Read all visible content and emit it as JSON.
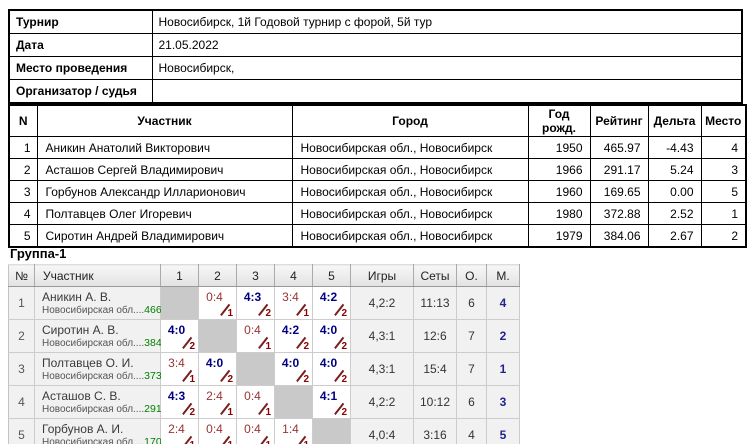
{
  "info": {
    "rows": [
      {
        "label": "Турнир",
        "value": "Новосибирск, 1й Годовой турнир с форой, 5й тур"
      },
      {
        "label": "Дата",
        "value": "21.05.2022"
      },
      {
        "label": "Место проведения",
        "value": "Новосибирск,"
      },
      {
        "label": "Организатор / судья",
        "value": ""
      }
    ]
  },
  "participants": {
    "headers": [
      "N",
      "Участник",
      "Город",
      "Год рожд.",
      "Рейтинг",
      "Дельта",
      "Место"
    ],
    "rows": [
      [
        "1",
        "Аникин Анатолий Викторович",
        "Новосибирская обл., Новосибирск",
        "1950",
        "465.97",
        "-4.43",
        "4"
      ],
      [
        "2",
        "Асташов Сергей Владимирович",
        "Новосибирская обл., Новосибирск",
        "1966",
        "291.17",
        "5.24",
        "3"
      ],
      [
        "3",
        "Горбунов Александр Илларионович",
        "Новосибирская обл., Новосибирск",
        "1960",
        "169.65",
        "0.00",
        "5"
      ],
      [
        "4",
        "Полтавцев Олег Игоревич",
        "Новосибирская обл., Новосибирск",
        "1980",
        "372.88",
        "2.52",
        "1"
      ],
      [
        "5",
        "Сиротин Андрей Владимирович",
        "Новосибирская обл., Новосибирск",
        "1979",
        "384.06",
        "2.67",
        "2"
      ]
    ]
  },
  "group": {
    "title": "Группа-1",
    "headers": [
      "№",
      "Участник",
      "1",
      "2",
      "3",
      "4",
      "5",
      "Игры",
      "Сеты",
      "О.",
      "М."
    ],
    "players": [
      {
        "num": "1",
        "name": "Аникин А. В.",
        "region": "Новосибирская обл....",
        "rating": "466",
        "results": [
          null,
          {
            "score": "0:4",
            "handicap": "1",
            "win": false
          },
          {
            "score": "4:3",
            "handicap": "2",
            "win": true
          },
          {
            "score": "3:4",
            "handicap": "1",
            "win": false
          },
          {
            "score": "4:2",
            "handicap": "2",
            "win": true
          }
        ],
        "games": "4,2:2",
        "sets": "11:13",
        "points": "6",
        "place": "4"
      },
      {
        "num": "2",
        "name": "Сиротин А. В.",
        "region": "Новосибирская обл....",
        "rating": "384",
        "results": [
          {
            "score": "4:0",
            "handicap": "2",
            "win": true
          },
          null,
          {
            "score": "0:4",
            "handicap": "1",
            "win": false
          },
          {
            "score": "4:2",
            "handicap": "2",
            "win": true
          },
          {
            "score": "4:0",
            "handicap": "2",
            "win": true
          }
        ],
        "games": "4,3:1",
        "sets": "12:6",
        "points": "7",
        "place": "2"
      },
      {
        "num": "3",
        "name": "Полтавцев О. И.",
        "region": "Новосибирская обл....",
        "rating": "373",
        "results": [
          {
            "score": "3:4",
            "handicap": "1",
            "win": false
          },
          {
            "score": "4:0",
            "handicap": "2",
            "win": true
          },
          null,
          {
            "score": "4:0",
            "handicap": "2",
            "win": true
          },
          {
            "score": "4:0",
            "handicap": "2",
            "win": true
          }
        ],
        "games": "4,3:1",
        "sets": "15:4",
        "points": "7",
        "place": "1"
      },
      {
        "num": "4",
        "name": "Асташов С. В.",
        "region": "Новосибирская обл....",
        "rating": "291",
        "results": [
          {
            "score": "4:3",
            "handicap": "2",
            "win": true
          },
          {
            "score": "2:4",
            "handicap": "1",
            "win": false
          },
          {
            "score": "0:4",
            "handicap": "1",
            "win": false
          },
          null,
          {
            "score": "4:1",
            "handicap": "2",
            "win": true
          }
        ],
        "games": "4,2:2",
        "sets": "10:12",
        "points": "6",
        "place": "3"
      },
      {
        "num": "5",
        "name": "Горбунов А. И.",
        "region": "Новосибирская обл....",
        "rating": "170",
        "results": [
          {
            "score": "2:4",
            "handicap": "1",
            "win": false
          },
          {
            "score": "0:4",
            "handicap": "1",
            "win": false
          },
          {
            "score": "0:4",
            "handicap": "1",
            "win": false
          },
          {
            "score": "1:4",
            "handicap": "1",
            "win": false
          },
          null
        ],
        "games": "4,0:4",
        "sets": "3:16",
        "points": "4",
        "place": "5"
      }
    ]
  },
  "colors": {
    "win_score": "#000080",
    "loss_score": "#993333",
    "handicap": "#8B0000",
    "rating_green": "#008000",
    "place_navy": "#23238E",
    "self_cell": "#C9C9C9",
    "table_border": "#000000",
    "grid_gray": "#CCCCCC"
  }
}
